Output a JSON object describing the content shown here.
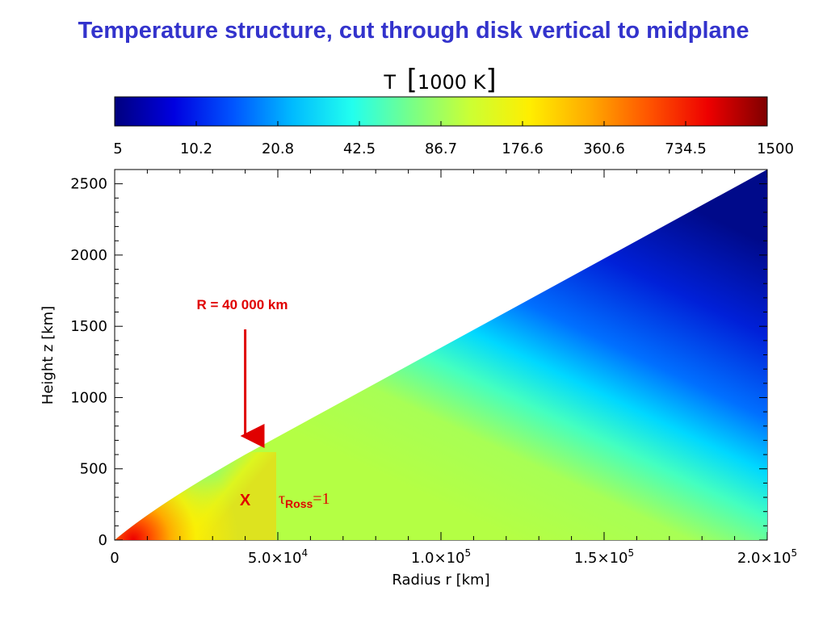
{
  "slide": {
    "title": "Temperature structure, cut through disk vertical to midplane",
    "title_color": "#3333cc"
  },
  "colorbar": {
    "label_T": "T",
    "label_unit": "1000 K",
    "ticks": [
      "5",
      "10.2",
      "20.8",
      "42.5",
      "86.7",
      "176.6",
      "360.6",
      "734.5",
      "1500"
    ],
    "colormap": "rainbow (blue to dark red)",
    "colors": [
      "#00007f",
      "#0000e0",
      "#0055ff",
      "#00bbff",
      "#22ffee",
      "#77ff88",
      "#ccff33",
      "#ffee00",
      "#ffaa00",
      "#ff5500",
      "#ee0000",
      "#7f0000"
    ]
  },
  "annotations": {
    "radius_label": "R = 40 000 km",
    "radius_km": 40000,
    "arrow_color": "#e00000",
    "marker_symbol": "X",
    "marker_r_km": 40000,
    "marker_z_km": 290,
    "tau_symbol": "τ",
    "tau_subscript": "Ross",
    "tau_value": "=1",
    "annotation_color": "#e00000"
  },
  "chart_data": {
    "type": "heatmap",
    "title": "Temperature structure, cut through disk vertical to midplane",
    "xlabel": "Radius r [km]",
    "ylabel": "Height z [km]",
    "xlim": [
      0,
      200000
    ],
    "ylim": [
      0,
      2600
    ],
    "x_ticks": [
      {
        "value": 0,
        "base": "0",
        "exp": ""
      },
      {
        "value": 50000,
        "base": "5.0×10",
        "exp": "4"
      },
      {
        "value": 100000,
        "base": "1.0×10",
        "exp": "5"
      },
      {
        "value": 150000,
        "base": "1.5×10",
        "exp": "5"
      },
      {
        "value": 200000,
        "base": "2.0×10",
        "exp": "5"
      }
    ],
    "y_ticks": [
      "0",
      "500",
      "1000",
      "1500",
      "2000",
      "2500"
    ],
    "y_tick_values": [
      0,
      500,
      1000,
      1500,
      2000,
      2500
    ],
    "colorbar_unit": "T [1000 K]",
    "colorbar_scale": "log",
    "colorbar_range": [
      5,
      1500
    ],
    "disk_surface": {
      "r_km": [
        0,
        10000,
        40000,
        200000
      ],
      "z_km": [
        0,
        230,
        600,
        2600
      ]
    },
    "tau_ross_1_point": {
      "r_km": 40000,
      "z_km": 290
    },
    "grid": false,
    "legend": "none"
  }
}
